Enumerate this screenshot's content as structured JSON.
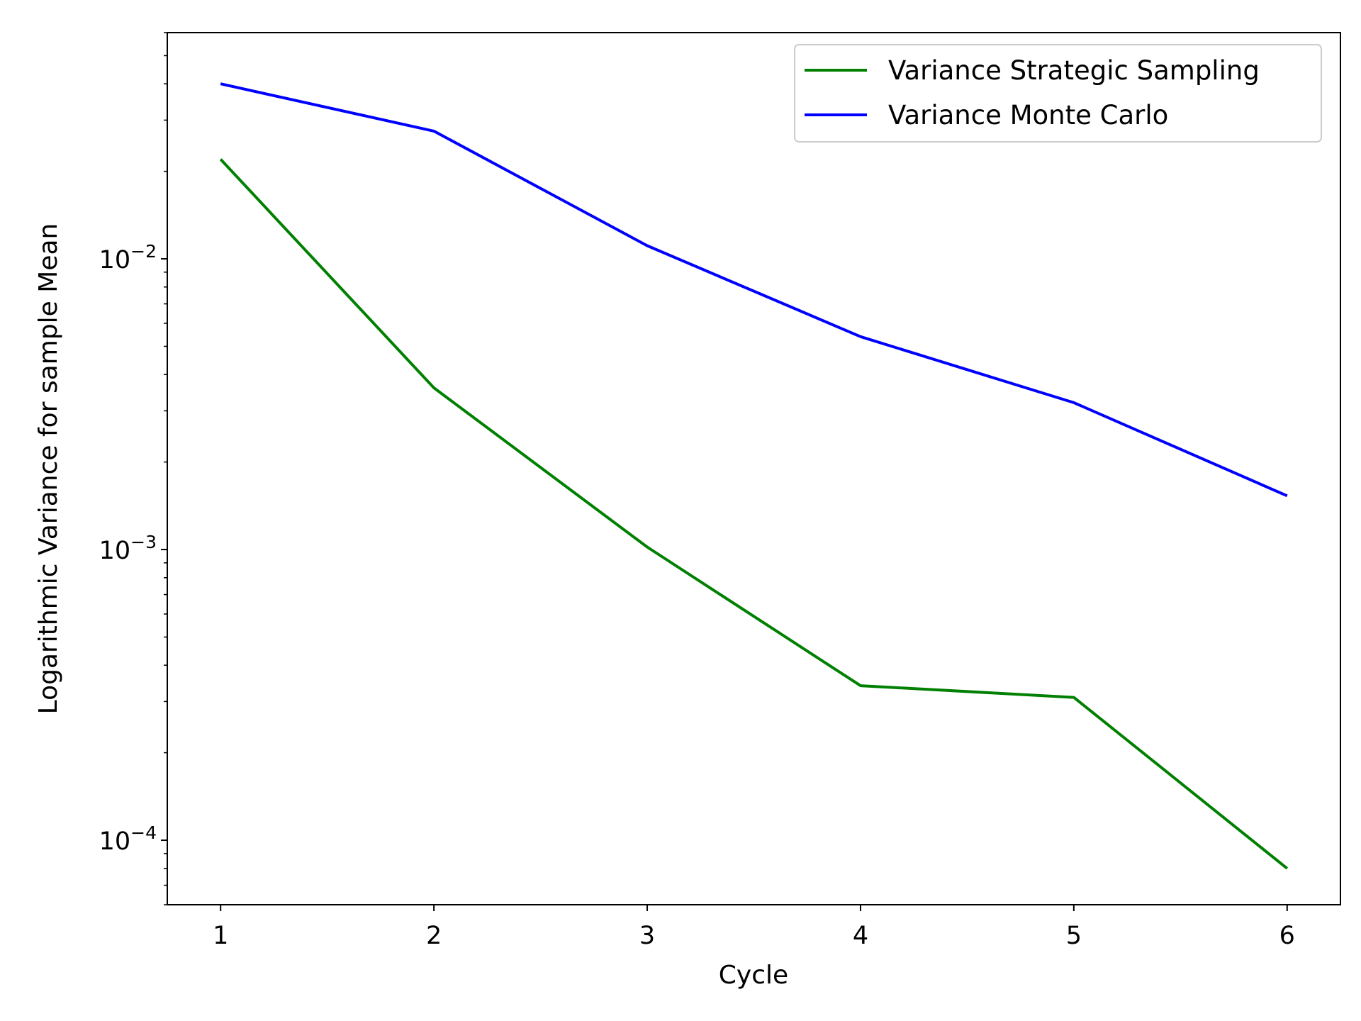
{
  "chart_data": {
    "type": "line",
    "title": "",
    "xlabel": "Cycle",
    "ylabel": "Logarithmic Variance for sample Mean",
    "x": [
      1,
      2,
      3,
      4,
      5,
      6
    ],
    "xticks": [
      "1",
      "2",
      "3",
      "4",
      "5",
      "6"
    ],
    "xlim": [
      0.75,
      6.25
    ],
    "yscale": "log",
    "ylim": [
      6e-05,
      0.06
    ],
    "yticks": [
      {
        "value": 0.0001,
        "base": "10",
        "exp": "−4"
      },
      {
        "value": 0.001,
        "base": "10",
        "exp": "−3"
      },
      {
        "value": 0.01,
        "base": "10",
        "exp": "−2"
      }
    ],
    "grid": false,
    "legend_position": "top-right",
    "series": [
      {
        "name": "Variance Strategic Sampling",
        "color": "#008000",
        "values": [
          0.022,
          0.0036,
          0.00102,
          0.00034,
          0.00031,
          8e-05
        ]
      },
      {
        "name": "Variance Monte Carlo",
        "color": "#0000ff",
        "values": [
          0.04,
          0.0275,
          0.0111,
          0.0054,
          0.0032,
          0.00153
        ]
      }
    ]
  }
}
